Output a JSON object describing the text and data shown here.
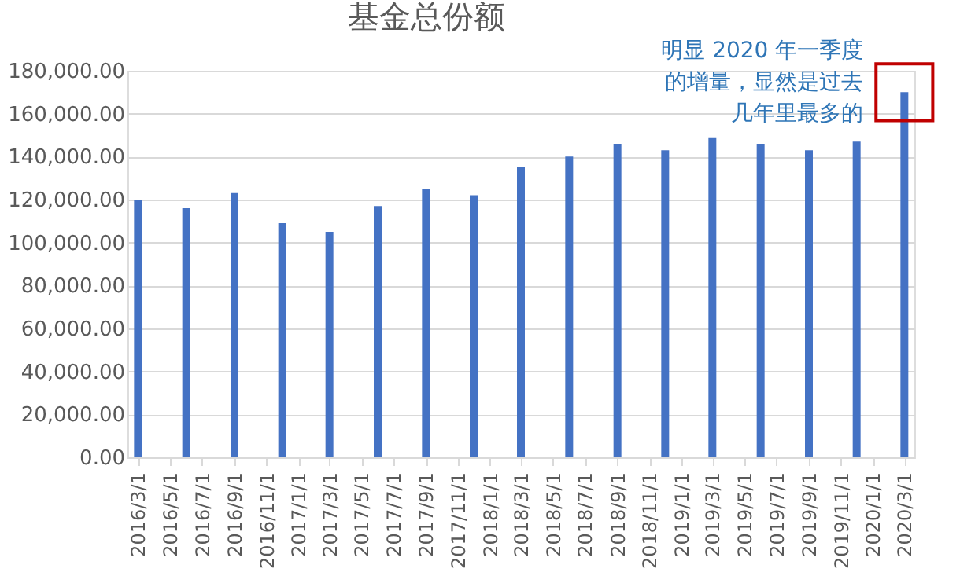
{
  "chart_data": {
    "type": "bar",
    "title": "基金总份额",
    "x": [
      "2016-03-01",
      "2016-06-01",
      "2016-09-01",
      "2016-12-01",
      "2017-03-01",
      "2017-06-01",
      "2017-09-01",
      "2017-12-01",
      "2018-03-01",
      "2018-06-01",
      "2018-09-01",
      "2018-12-01",
      "2019-03-01",
      "2019-06-01",
      "2019-09-01",
      "2019-12-01",
      "2020-03-01"
    ],
    "values": [
      120000,
      116000,
      123000,
      109000,
      105000,
      117000,
      125000,
      122000,
      135000,
      140000,
      146000,
      143000,
      149000,
      146000,
      143000,
      147000,
      170000
    ],
    "color": "#4472c4",
    "xlim": [
      "2016-02-10",
      "2020-03-20"
    ],
    "xticks": [
      {
        "value": "2016-03-01",
        "label": "2016/3/1"
      },
      {
        "value": "2016-05-01",
        "label": "2016/5/1"
      },
      {
        "value": "2016-07-01",
        "label": "2016/7/1"
      },
      {
        "value": "2016-09-01",
        "label": "2016/9/1"
      },
      {
        "value": "2016-11-01",
        "label": "2016/11/1"
      },
      {
        "value": "2017-01-01",
        "label": "2017/1/1"
      },
      {
        "value": "2017-03-01",
        "label": "2017/3/1"
      },
      {
        "value": "2017-05-01",
        "label": "2017/5/1"
      },
      {
        "value": "2017-07-01",
        "label": "2017/7/1"
      },
      {
        "value": "2017-09-01",
        "label": "2017/9/1"
      },
      {
        "value": "2017-11-01",
        "label": "2017/11/1"
      },
      {
        "value": "2018-01-01",
        "label": "2018/1/1"
      },
      {
        "value": "2018-03-01",
        "label": "2018/3/1"
      },
      {
        "value": "2018-05-01",
        "label": "2018/5/1"
      },
      {
        "value": "2018-07-01",
        "label": "2018/7/1"
      },
      {
        "value": "2018-09-01",
        "label": "2018/9/1"
      },
      {
        "value": "2018-11-01",
        "label": "2018/11/1"
      },
      {
        "value": "2019-01-01",
        "label": "2019/1/1"
      },
      {
        "value": "2019-03-01",
        "label": "2019/3/1"
      },
      {
        "value": "2019-05-01",
        "label": "2019/5/1"
      },
      {
        "value": "2019-07-01",
        "label": "2019/7/1"
      },
      {
        "value": "2019-09-01",
        "label": "2019/9/1"
      },
      {
        "value": "2019-11-01",
        "label": "2019/11/1"
      },
      {
        "value": "2020-01-01",
        "label": "2020/1/1"
      },
      {
        "value": "2020-03-01",
        "label": "2020/3/1"
      }
    ],
    "ylim": [
      0,
      180000
    ],
    "yticks": [
      {
        "value": 0,
        "label": "0.00"
      },
      {
        "value": 20000,
        "label": "20,000.00"
      },
      {
        "value": 40000,
        "label": "40,000.00"
      },
      {
        "value": 60000,
        "label": "60,000.00"
      },
      {
        "value": 80000,
        "label": "80,000.00"
      },
      {
        "value": 100000,
        "label": "100,000.00"
      },
      {
        "value": 120000,
        "label": "120,000.00"
      },
      {
        "value": 140000,
        "label": "140,000.00"
      },
      {
        "value": 160000,
        "label": "160,000.00"
      },
      {
        "value": 180000,
        "label": "180,000.00"
      }
    ],
    "grid": "y",
    "annotations": [
      {
        "text": "明显 2020 年一季度的增量，显然是过去几年里最多的",
        "x": "2020-03-01",
        "y": 170000
      }
    ]
  }
}
